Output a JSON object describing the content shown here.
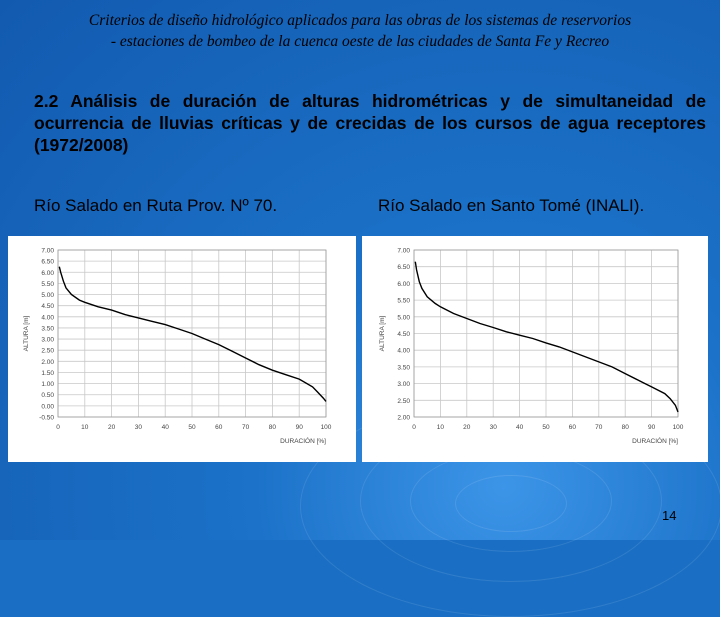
{
  "header": {
    "line1": "Criterios de diseño hidrológico aplicados para las obras de los sistemas de reservorios",
    "line2": "- estaciones de bombeo de la cuenca oeste  de las ciudades de Santa Fe y Recreo"
  },
  "section": {
    "title": "2.2   Análisis de duración de alturas hidrométricas y de simultaneidad de ocurrencia de lluvias críticas y de crecidas de los cursos de agua receptores (1972/2008)"
  },
  "left_label": "Río Salado en Ruta Prov. Nº 70.",
  "right_label": "Río Salado en Santo Tomé (INALI).",
  "page_number": "14",
  "chart_data": [
    {
      "type": "line",
      "xlabel": "DURACIÓN [%]",
      "ylabel": "ALTURA [m]",
      "xlim": [
        0,
        100
      ],
      "ylim": [
        -0.5,
        7.0
      ],
      "xticks": [
        "0",
        "10",
        "20",
        "30",
        "40",
        "50",
        "60",
        "70",
        "80",
        "90",
        "100"
      ],
      "yticks": [
        "-0.50",
        "0.00",
        "0.50",
        "1.00",
        "1.50",
        "2.00",
        "2.50",
        "3.00",
        "3.50",
        "4.00",
        "4.50",
        "5.00",
        "5.50",
        "6.00",
        "6.50",
        "7.00"
      ],
      "grid": true,
      "series": [
        {
          "color": "#000000",
          "x": [
            0.5,
            1,
            2,
            3,
            5,
            8,
            10,
            15,
            20,
            25,
            30,
            35,
            40,
            45,
            50,
            55,
            60,
            65,
            70,
            75,
            80,
            85,
            90,
            95,
            97,
            99,
            100
          ],
          "y": [
            6.25,
            6.0,
            5.6,
            5.3,
            5.0,
            4.75,
            4.65,
            4.45,
            4.3,
            4.1,
            3.95,
            3.8,
            3.65,
            3.45,
            3.25,
            3.0,
            2.75,
            2.45,
            2.15,
            1.85,
            1.6,
            1.4,
            1.2,
            0.85,
            0.6,
            0.35,
            0.2
          ]
        }
      ]
    },
    {
      "type": "line",
      "xlabel": "DURACIÓN [%]",
      "ylabel": "ALTURA [m]",
      "xlim": [
        0,
        100
      ],
      "ylim": [
        2.0,
        7.0
      ],
      "xticks": [
        "0",
        "10",
        "20",
        "30",
        "40",
        "50",
        "60",
        "70",
        "80",
        "90",
        "100"
      ],
      "yticks": [
        "2.00",
        "2.50",
        "3.00",
        "3.50",
        "4.00",
        "4.50",
        "5.00",
        "5.50",
        "6.00",
        "6.50",
        "7.00"
      ],
      "grid": true,
      "series": [
        {
          "color": "#000000",
          "x": [
            0.5,
            1,
            2,
            3,
            5,
            8,
            10,
            15,
            20,
            25,
            30,
            35,
            40,
            45,
            50,
            55,
            60,
            65,
            70,
            75,
            80,
            85,
            90,
            95,
            97,
            99,
            100
          ],
          "y": [
            6.65,
            6.4,
            6.05,
            5.85,
            5.6,
            5.4,
            5.3,
            5.1,
            4.95,
            4.8,
            4.68,
            4.55,
            4.45,
            4.35,
            4.22,
            4.1,
            3.95,
            3.8,
            3.65,
            3.5,
            3.3,
            3.1,
            2.9,
            2.7,
            2.55,
            2.35,
            2.15
          ]
        }
      ]
    }
  ]
}
